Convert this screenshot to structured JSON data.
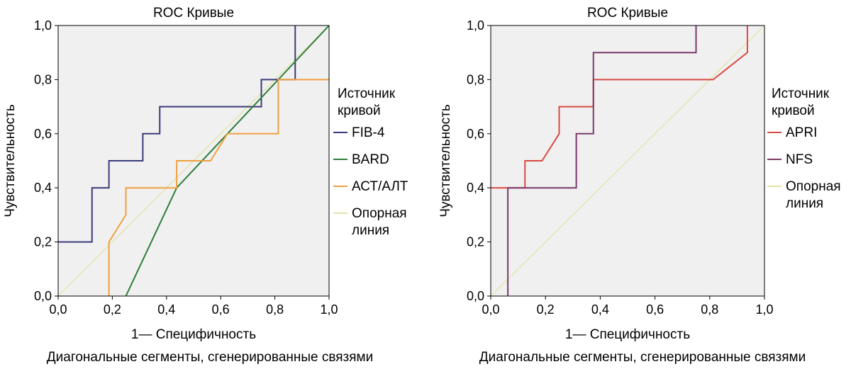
{
  "chart_data": [
    {
      "type": "line",
      "title": "ROC Кривые",
      "xlabel": "1— Специфичность",
      "ylabel": "Чувствительность",
      "footnote": "Диагональные сегменты, сгенерированные связями",
      "xlim": [
        0,
        1
      ],
      "ylim": [
        0,
        1
      ],
      "x_ticks": [
        "0,0",
        "0,2",
        "0,4",
        "0,6",
        "0,8",
        "1,0"
      ],
      "y_ticks": [
        "0,0",
        "0,2",
        "0,4",
        "0,6",
        "0,8",
        "1,0"
      ],
      "grid": false,
      "legend_title": [
        "Источник",
        "кривой"
      ],
      "legend_position": "right",
      "series": [
        {
          "name": "FIB-4",
          "color": "#3b3a7a",
          "points": [
            [
              0,
              0.2
            ],
            [
              0.125,
              0.2
            ],
            [
              0.125,
              0.4
            ],
            [
              0.1875,
              0.4
            ],
            [
              0.1875,
              0.5
            ],
            [
              0.3125,
              0.5
            ],
            [
              0.3125,
              0.6
            ],
            [
              0.375,
              0.6
            ],
            [
              0.375,
              0.7
            ],
            [
              0.75,
              0.7
            ],
            [
              0.75,
              0.8
            ],
            [
              0.875,
              0.8
            ],
            [
              0.875,
              1.0
            ]
          ]
        },
        {
          "name": "BARD",
          "color": "#2e7d3a",
          "points": [
            [
              0.25,
              0
            ],
            [
              0.4375,
              0.4
            ],
            [
              0.625,
              0.6
            ],
            [
              1,
              1
            ]
          ]
        },
        {
          "name": "АСТ/АЛТ",
          "color": "#f0a040",
          "points": [
            [
              0.1875,
              0
            ],
            [
              0.1875,
              0.2
            ],
            [
              0.25,
              0.3
            ],
            [
              0.25,
              0.4
            ],
            [
              0.4375,
              0.4
            ],
            [
              0.4375,
              0.5
            ],
            [
              0.5625,
              0.5
            ],
            [
              0.625,
              0.6
            ],
            [
              0.8125,
              0.6
            ],
            [
              0.8125,
              0.8
            ],
            [
              1,
              0.8
            ]
          ]
        },
        {
          "name": [
            "Опорная",
            "линия"
          ],
          "color": "#e2e2a6",
          "points": [
            [
              0,
              0
            ],
            [
              1,
              1
            ]
          ]
        }
      ]
    },
    {
      "type": "line",
      "title": "ROC Кривые",
      "xlabel": "1— Специфичность",
      "ylabel": "Чувствительность",
      "footnote": "Диагональные сегменты, сгенерированные связями",
      "xlim": [
        0,
        1
      ],
      "ylim": [
        0,
        1
      ],
      "x_ticks": [
        "0,0",
        "0,2",
        "0,4",
        "0,6",
        "0,8",
        "1,0"
      ],
      "y_ticks": [
        "0,0",
        "0,2",
        "0,4",
        "0,6",
        "0,8",
        "1,0"
      ],
      "grid": false,
      "legend_title": [
        "Источник",
        "кривой"
      ],
      "legend_position": "right",
      "series": [
        {
          "name": "APRI",
          "color": "#d84a45",
          "points": [
            [
              0,
              0.4
            ],
            [
              0.125,
              0.4
            ],
            [
              0.125,
              0.5
            ],
            [
              0.1875,
              0.5
            ],
            [
              0.25,
              0.6
            ],
            [
              0.25,
              0.7
            ],
            [
              0.375,
              0.7
            ],
            [
              0.375,
              0.8
            ],
            [
              0.8125,
              0.8
            ],
            [
              0.9375,
              0.9
            ],
            [
              0.9375,
              1.0
            ]
          ]
        },
        {
          "name": "NFS",
          "color": "#7a3a6a",
          "points": [
            [
              0.0625,
              0
            ],
            [
              0.0625,
              0.4
            ],
            [
              0.3125,
              0.4
            ],
            [
              0.3125,
              0.6
            ],
            [
              0.375,
              0.6
            ],
            [
              0.375,
              0.9
            ],
            [
              0.75,
              0.9
            ],
            [
              0.75,
              1.0
            ]
          ]
        },
        {
          "name": [
            "Опорная",
            "линия"
          ],
          "color": "#e2e2a6",
          "points": [
            [
              0,
              0
            ],
            [
              1,
              1
            ]
          ]
        }
      ]
    }
  ]
}
